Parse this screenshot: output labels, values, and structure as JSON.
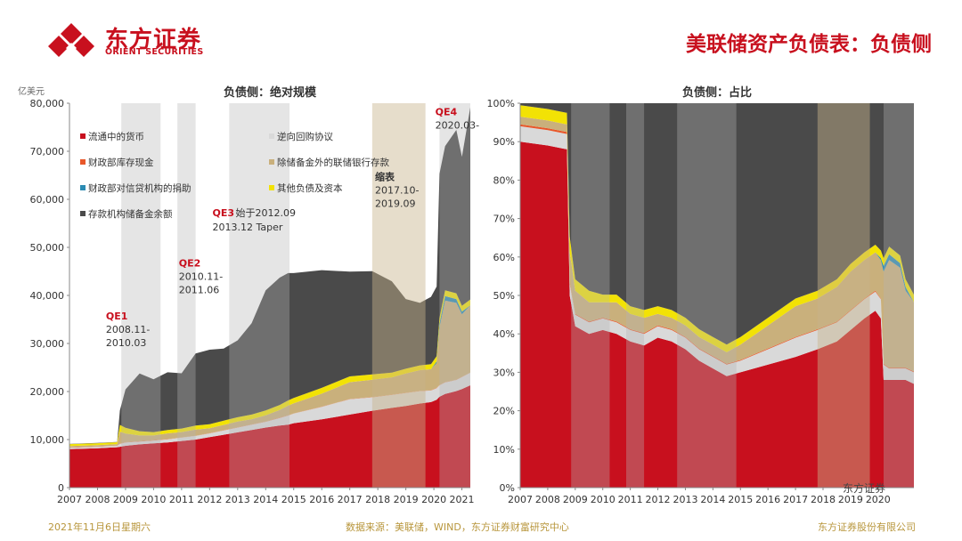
{
  "header": {
    "logo_cn": "东方证券",
    "logo_en": "ORIENT SECURITIES",
    "page_title": "美联储资产负债表：负债侧"
  },
  "footer": {
    "date": "2021年11月6日星期六",
    "source": "数据来源：美联储，WIND，东方证券财富研究中心",
    "company": "东方证券股份有限公司"
  },
  "watermark": "东方证券",
  "colors": {
    "brand": "#c8101e",
    "currency": "#c8101e",
    "repo": "#d9d9d9",
    "treasury": "#e8572a",
    "other_deposits": "#c9b07c",
    "credit_facility": "#2b8bb3",
    "other_liab": "#f2e205",
    "reserves": "#4a4a4a",
    "shade": "rgba(180,180,180,0.35)",
    "shade_taper": "rgba(200,180,140,0.45)"
  },
  "chart_data": [
    {
      "type": "area",
      "stacked": true,
      "title": "负债侧：绝对规模",
      "ylabel": "亿美元",
      "ylim": [
        0,
        80000
      ],
      "yticks": [
        "0",
        "10,000",
        "20,000",
        "30,000",
        "40,000",
        "50,000",
        "60,000",
        "70,000",
        "80,000"
      ],
      "xlim": [
        2007,
        2021.3
      ],
      "xticks": [
        "2007",
        "2008",
        "2009",
        "2010",
        "2011",
        "2012",
        "2013",
        "2014",
        "2015",
        "2016",
        "2017",
        "2018",
        "2019",
        "2020",
        "2021"
      ],
      "x": [
        2007.0,
        2008.0,
        2008.7,
        2008.8,
        2009.0,
        2009.5,
        2010.0,
        2010.5,
        2011.0,
        2011.5,
        2012.0,
        2012.5,
        2013.0,
        2013.5,
        2014.0,
        2014.5,
        2014.8,
        2015.0,
        2016.0,
        2017.0,
        2017.8,
        2018.5,
        2019.0,
        2019.5,
        2019.9,
        2020.1,
        2020.2,
        2020.4,
        2020.8,
        2021.0,
        2021.3
      ],
      "series": [
        {
          "name": "流通中的货币",
          "color_key": "currency",
          "values": [
            8000,
            8200,
            8400,
            8500,
            8700,
            9000,
            9200,
            9400,
            9700,
            10000,
            10500,
            11000,
            11500,
            12000,
            12500,
            12900,
            13100,
            13400,
            14200,
            15200,
            16000,
            16600,
            17000,
            17500,
            17800,
            18300,
            18900,
            19500,
            20100,
            20500,
            21300
          ]
        },
        {
          "name": "逆向回购协议",
          "color_key": "repo",
          "values": [
            300,
            300,
            300,
            600,
            700,
            600,
            600,
            650,
            700,
            750,
            800,
            900,
            1000,
            1100,
            1200,
            1600,
            1900,
            2000,
            2600,
            3200,
            2800,
            2700,
            2700,
            2600,
            2400,
            2400,
            2400,
            2400,
            2300,
            2500,
            2600
          ]
        },
        {
          "name": "财政部库存现金",
          "color_key": "treasury",
          "values": [
            50,
            50,
            50,
            50,
            50,
            50,
            50,
            50,
            50,
            50,
            50,
            50,
            50,
            50,
            50,
            50,
            50,
            50,
            50,
            50,
            50,
            50,
            50,
            50,
            50,
            50,
            50,
            50,
            50,
            50,
            50
          ]
        },
        {
          "name": "除储备金外的联储银行存款",
          "color_key": "other_deposits",
          "values": [
            300,
            300,
            300,
            2500,
            1800,
            1200,
            1000,
            1200,
            1100,
            1300,
            1000,
            1100,
            1200,
            1100,
            1300,
            1600,
            2000,
            2100,
            2700,
            3500,
            3600,
            3600,
            4000,
            4300,
            4400,
            5200,
            12000,
            17000,
            16000,
            13000,
            14000
          ]
        },
        {
          "name": "财政部对信贷机构的捐助",
          "color_key": "credit_facility",
          "values": [
            0,
            0,
            0,
            0,
            0,
            0,
            0,
            0,
            0,
            0,
            0,
            0,
            0,
            0,
            0,
            0,
            0,
            0,
            0,
            0,
            0,
            0,
            0,
            0,
            0,
            300,
            800,
            900,
            800,
            600,
            0
          ]
        },
        {
          "name": "其他负债及资本",
          "color_key": "other_liab",
          "values": [
            400,
            400,
            400,
            1400,
            1200,
            900,
            700,
            700,
            750,
            800,
            850,
            900,
            900,
            950,
            1000,
            1050,
            1100,
            1100,
            1200,
            1200,
            1100,
            1000,
            1000,
            1000,
            1050,
            1100,
            1200,
            1200,
            1200,
            1200,
            1200
          ]
        },
        {
          "name": "存款机构储备金余额",
          "color_key": "reserves",
          "values": [
            50,
            50,
            50,
            3000,
            8000,
            12000,
            11000,
            12000,
            11500,
            15000,
            15500,
            15000,
            16000,
            19000,
            25000,
            26500,
            26500,
            26000,
            24500,
            21800,
            21500,
            19000,
            14500,
            13000,
            14000,
            14500,
            30000,
            30000,
            34000,
            31000,
            40000
          ]
        }
      ],
      "annotations": [
        {
          "label": "QE1",
          "text1": "2008.11-",
          "text2": "2010.03",
          "from": 2008.85,
          "to": 2010.25
        },
        {
          "label": "QE2",
          "text1": "2010.11-",
          "text2": "2011.06",
          "from": 2010.85,
          "to": 2011.5
        },
        {
          "label": "QE3",
          "text1": "始于2012.09",
          "text2": "2013.12 Taper",
          "from": 2012.7,
          "to": 2014.85
        },
        {
          "label": "缩表",
          "text1": "2017.10-",
          "text2": "2019.09",
          "from": 2017.8,
          "to": 2019.7
        },
        {
          "label": "QE4",
          "text1": "2020.03-",
          "text2": "",
          "from": 2020.2,
          "to": 2021.3
        }
      ]
    },
    {
      "type": "area",
      "stacked": true,
      "title": "负债侧：占比",
      "ylabel": "%",
      "ylim": [
        0,
        100
      ],
      "yticks": [
        "0%",
        "10%",
        "20%",
        "30%",
        "40%",
        "50%",
        "60%",
        "70%",
        "80%",
        "90%",
        "100%"
      ],
      "xlim": [
        2007,
        2021.3
      ],
      "xticks": [
        "2007",
        "2008",
        "2009",
        "2010",
        "2011",
        "2012",
        "2013",
        "2014",
        "2015",
        "2016",
        "2017",
        "2018",
        "2019",
        "2020"
      ],
      "x": [
        2007.0,
        2008.0,
        2008.7,
        2008.8,
        2009.0,
        2009.5,
        2010.0,
        2010.5,
        2011.0,
        2011.5,
        2012.0,
        2012.5,
        2013.0,
        2013.5,
        2014.0,
        2014.5,
        2015.0,
        2016.0,
        2017.0,
        2017.8,
        2018.5,
        2019.0,
        2019.5,
        2019.9,
        2020.1,
        2020.2,
        2020.4,
        2020.8,
        2021.0,
        2021.3
      ],
      "series": [
        {
          "name": "流通中的货币",
          "color_key": "currency",
          "values": [
            90,
            89,
            88,
            50,
            42,
            40,
            41,
            40,
            38,
            37,
            39,
            38,
            36,
            33,
            31,
            29,
            30,
            32,
            34,
            36,
            38,
            41,
            44,
            46,
            44,
            28,
            28,
            28,
            28,
            27
          ]
        },
        {
          "name": "逆向回购协议",
          "color_key": "repo",
          "values": [
            4,
            4,
            4,
            3,
            3,
            3,
            3,
            3,
            3,
            3,
            3,
            3,
            3,
            3,
            3,
            3,
            3,
            4,
            5,
            5,
            5,
            5,
            5,
            5,
            5,
            4,
            3,
            3,
            3,
            3
          ]
        },
        {
          "name": "财政部库存现金",
          "color_key": "treasury",
          "values": [
            0.5,
            0.5,
            0.5,
            0.3,
            0.2,
            0.2,
            0.2,
            0.2,
            0.2,
            0.2,
            0.2,
            0.2,
            0.2,
            0.2,
            0.2,
            0.2,
            0.2,
            0.2,
            0.2,
            0.2,
            0.2,
            0.2,
            0.2,
            0.2,
            0.2,
            0.2,
            0.2,
            0.2,
            0.2,
            0.2
          ]
        },
        {
          "name": "除储备金外的联储银行存款",
          "color_key": "other_deposits",
          "values": [
            2,
            2,
            2,
            8,
            6,
            5,
            4,
            5,
            4,
            4,
            3,
            3,
            3,
            3,
            3,
            3,
            4,
            6,
            8,
            8,
            9,
            10,
            10,
            10,
            10,
            24,
            28,
            26,
            20,
            18
          ]
        },
        {
          "name": "财政部对信贷机构的捐助",
          "color_key": "credit_facility",
          "values": [
            0,
            0,
            0,
            0,
            0,
            0,
            0,
            0,
            0,
            0,
            0,
            0,
            0,
            0,
            0,
            0,
            0,
            0,
            0,
            0,
            0,
            0,
            0,
            0,
            0.5,
            1.5,
            1.5,
            1.2,
            1,
            0
          ]
        },
        {
          "name": "其他负债及资本",
          "color_key": "other_liab",
          "values": [
            3,
            3,
            3,
            4,
            3,
            3,
            2,
            2,
            2,
            2,
            2,
            2,
            2,
            2,
            2,
            2,
            2,
            2,
            2,
            2,
            2,
            2,
            2,
            2,
            2,
            2,
            2,
            2,
            2,
            2
          ]
        },
        {
          "name": "存款机构储备金余额",
          "color_key": "reserves",
          "values": [
            0.5,
            1.5,
            2.5,
            34.7,
            45.8,
            48.8,
            49.8,
            49.8,
            52.8,
            53.8,
            52.8,
            53.8,
            55.8,
            58.8,
            60.8,
            62.8,
            60.8,
            55.8,
            50.8,
            48.8,
            45.8,
            41.8,
            38.8,
            36.8,
            38.3,
            40.3,
            37.3,
            39.6,
            45.8,
            49.8
          ]
        }
      ],
      "shade_bands": [
        {
          "from": 2008.85,
          "to": 2010.25,
          "kind": "shade"
        },
        {
          "from": 2010.85,
          "to": 2011.5,
          "kind": "shade"
        },
        {
          "from": 2012.7,
          "to": 2014.85,
          "kind": "shade"
        },
        {
          "from": 2017.8,
          "to": 2019.7,
          "kind": "shade_taper"
        },
        {
          "from": 2020.2,
          "to": 2021.3,
          "kind": "shade"
        }
      ]
    }
  ]
}
